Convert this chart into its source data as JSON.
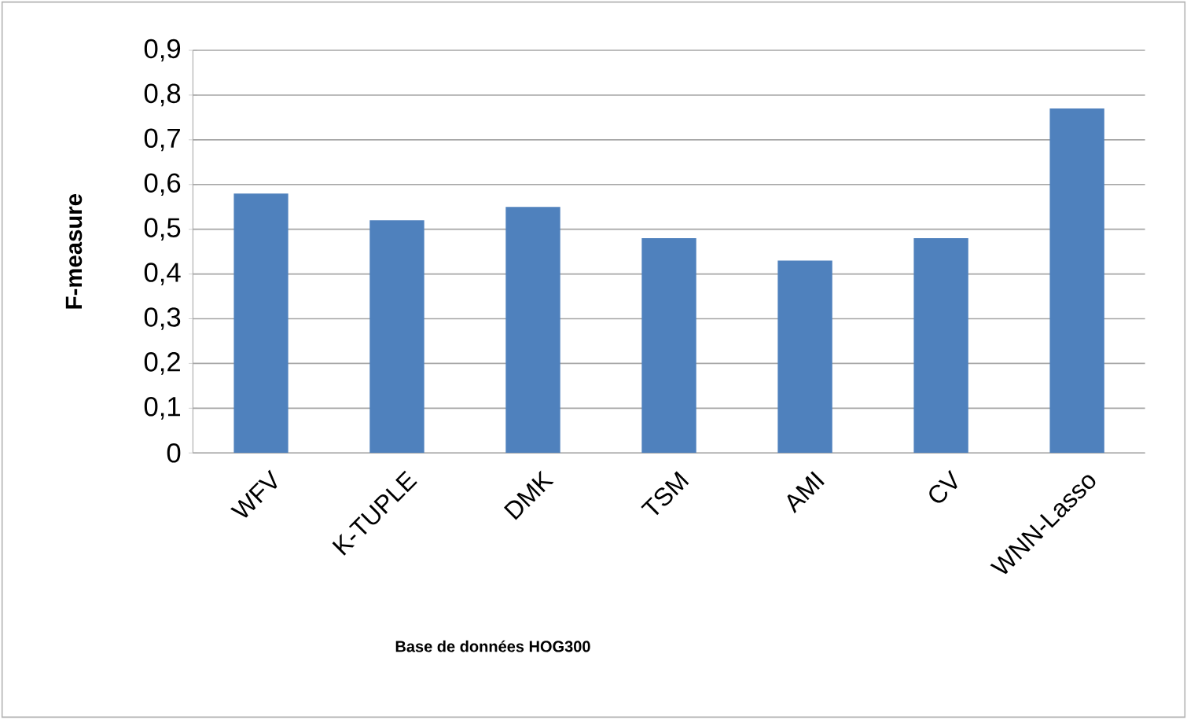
{
  "chart_data": {
    "type": "bar",
    "xlabel": "Base de données HOG300",
    "ylabel": "F-measure",
    "categories": [
      "WFV",
      "K-TUPLE",
      "DMK",
      "TSM",
      "AMI",
      "CV",
      "WNN-Lasso"
    ],
    "values": [
      0.58,
      0.52,
      0.55,
      0.48,
      0.43,
      0.48,
      0.77
    ],
    "color": "#4f81bd",
    "ylim": [
      0,
      0.9
    ],
    "yticks": [
      0,
      {
        "value": 0.1,
        "label": "0,1"
      },
      {
        "value": 0.2,
        "label": "0,2"
      },
      {
        "value": 0.3,
        "label": "0,3"
      },
      {
        "value": 0.4,
        "label": "0,4"
      },
      {
        "value": 0.5,
        "label": "0,5"
      },
      {
        "value": 0.6,
        "label": "0,6"
      },
      {
        "value": 0.7,
        "label": "0,7"
      },
      {
        "value": 0.8,
        "label": "0,8"
      },
      {
        "value": 0.9,
        "label": "0,9"
      }
    ],
    "grid": "y"
  }
}
